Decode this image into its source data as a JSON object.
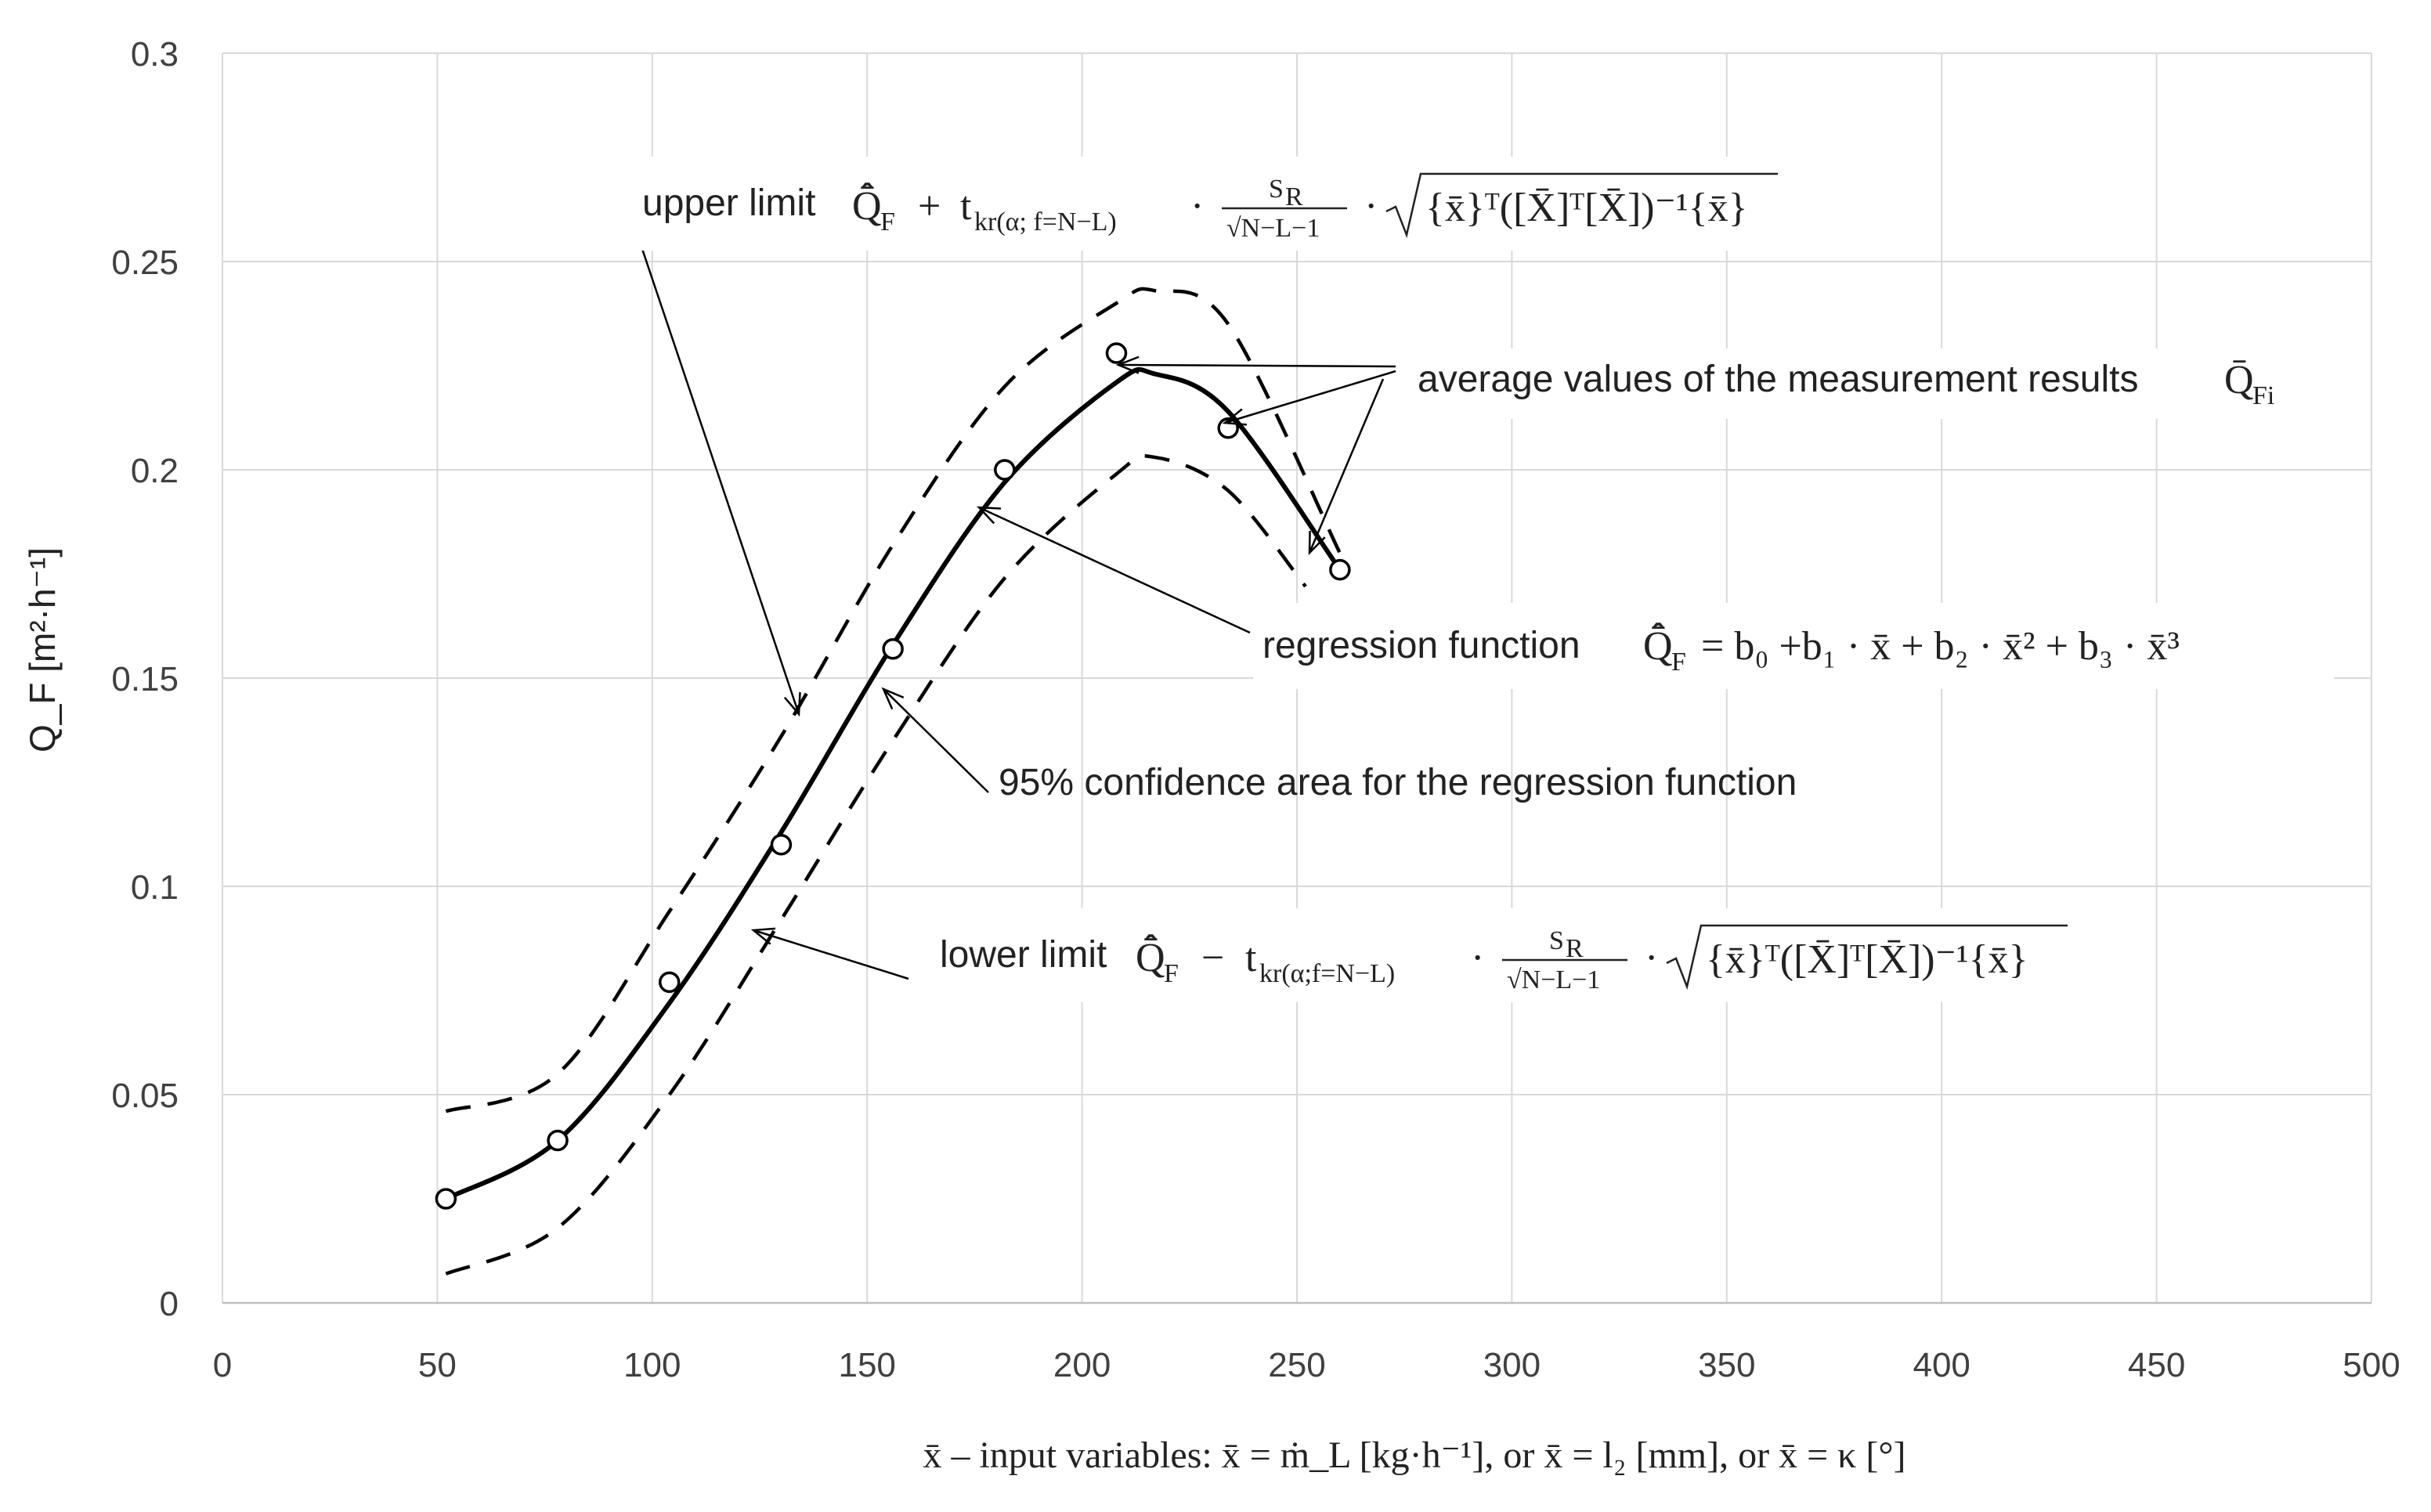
{
  "chart_data": {
    "type": "line",
    "title": "",
    "xlabel": "x̄ – input variables: x̄ = ṁ_L [kg·h⁻¹], or x̄ = l₂ [mm], or x̄ = κ [°]",
    "ylabel": "Q_F [m²·h⁻¹]",
    "xlim": [
      0,
      500
    ],
    "ylim": [
      0,
      0.3
    ],
    "grid": true,
    "x_ticks": [
      0,
      50,
      100,
      150,
      200,
      250,
      300,
      350,
      400,
      450,
      500
    ],
    "y_ticks": [
      0,
      0.05,
      0.1,
      0.15,
      0.2,
      0.25,
      0.3
    ],
    "x_tick_labels": [
      "0",
      "50",
      "100",
      "150",
      "200",
      "250",
      "300",
      "350",
      "400",
      "450",
      "500"
    ],
    "y_tick_labels": [
      "0",
      "0.05",
      "0.1",
      "0.15",
      "0.2",
      "0.25",
      "0.3"
    ],
    "series": [
      {
        "name": "average values of the measurement results",
        "style": "markers",
        "x": [
          52,
          78,
          104,
          130,
          156,
          182,
          208,
          234,
          260
        ],
        "y": [
          0.025,
          0.039,
          0.077,
          0.11,
          0.157,
          0.2,
          0.228,
          0.21,
          0.176
        ]
      },
      {
        "name": "regression function",
        "style": "solid",
        "x": [
          52,
          78,
          104,
          130,
          156,
          182,
          208,
          217,
          234,
          260
        ],
        "y": [
          0.025,
          0.039,
          0.072,
          0.113,
          0.158,
          0.197,
          0.221,
          0.223,
          0.214,
          0.176
        ]
      },
      {
        "name": "upper limit",
        "style": "dashed",
        "x": [
          52,
          78,
          104,
          130,
          156,
          182,
          208,
          217,
          234,
          260
        ],
        "y": [
          0.046,
          0.055,
          0.094,
          0.136,
          0.182,
          0.22,
          0.24,
          0.243,
          0.235,
          0.18
        ]
      },
      {
        "name": "lower limit",
        "style": "dashed",
        "x": [
          52,
          78,
          104,
          130,
          156,
          182,
          208,
          217,
          234,
          252
        ],
        "y": [
          0.007,
          0.018,
          0.05,
          0.092,
          0.135,
          0.174,
          0.199,
          0.203,
          0.195,
          0.172
        ]
      }
    ],
    "annotations": {
      "upper_label": "upper limit",
      "avg_label": "average values of the measurement results",
      "regression_label": "regression function",
      "confidence_label": "95% confidence area for the regression function",
      "lower_label": "lower limit"
    },
    "formulas": {
      "q_hat": "Q̄̂",
      "q_bar": "Q̄",
      "sub_F": "F",
      "sub_Fi": "Fi",
      "plus": "+",
      "minus": "−",
      "dot": "·",
      "t": "t",
      "t_sub_upper": "kr(α; f=N−L)",
      "t_sub_lower": "kr(α;f=N−L)",
      "s_r": "S",
      "s_r_sub": "R",
      "denom": "√N−L−1",
      "sqrt_body": "{x̄}ᵀ([X̄]ᵀ[X̄])⁻¹{x̄}",
      "regression_rhs": "= b₀ +b₁ · x̄ + b₂ · x̄² + b₃ · x̄³"
    },
    "colors": {
      "line": "#000000",
      "grid": "#d9d9d9",
      "axis_text": "#404040"
    }
  }
}
